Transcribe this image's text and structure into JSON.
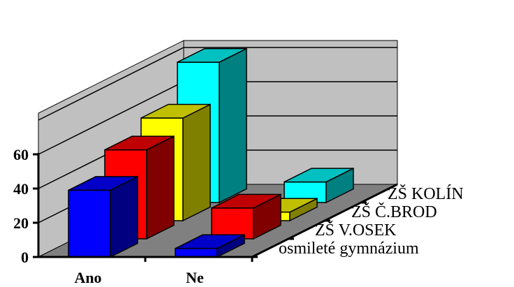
{
  "chart_data": {
    "type": "bar",
    "subtype": "3d-column",
    "title": "",
    "xlabel": "",
    "ylabel": "",
    "categories": [
      "Ano",
      "Ne"
    ],
    "series": [
      {
        "name": "osmileté gymnázium",
        "values": [
          39,
          5
        ],
        "color_front": "#0000FF",
        "color_side": "#000080",
        "color_top": "#0000C8"
      },
      {
        "name": "ZŠ V.OSEK",
        "values": [
          52,
          18
        ],
        "color_front": "#FF0000",
        "color_side": "#800000",
        "color_top": "#C00000"
      },
      {
        "name": "ZŠ Č.BROD",
        "values": [
          60,
          5
        ],
        "color_front": "#FFFF00",
        "color_side": "#808000",
        "color_top": "#C0C000"
      },
      {
        "name": "ZŠ KOLÍN",
        "values": [
          82,
          12
        ],
        "color_front": "#00FFFF",
        "color_side": "#008080",
        "color_top": "#00C0C0"
      }
    ],
    "ylim": [
      0,
      80
    ],
    "yticks": [
      "0",
      "20",
      "40",
      "60"
    ],
    "grid": true,
    "legend": "series-axis-right",
    "wall_color": "#C0C0C0",
    "floor_color": "#808080"
  }
}
